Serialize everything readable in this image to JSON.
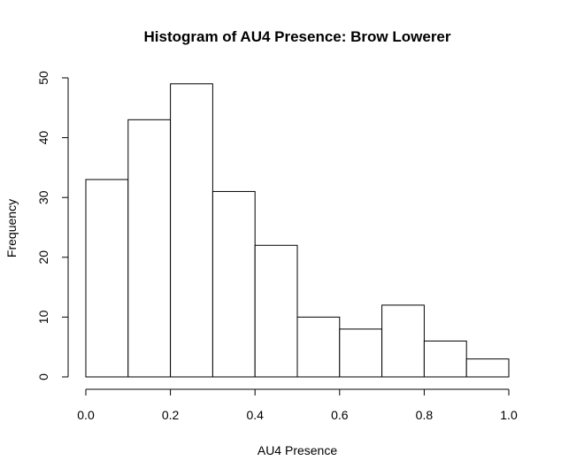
{
  "chart_data": {
    "type": "bar",
    "title": "Histogram of AU4 Presence: Brow Lowerer",
    "xlabel": "AU4 Presence",
    "ylabel": "Frequency",
    "bins": [
      {
        "start": 0.0,
        "end": 0.1,
        "count": 33
      },
      {
        "start": 0.1,
        "end": 0.2,
        "count": 43
      },
      {
        "start": 0.2,
        "end": 0.3,
        "count": 49
      },
      {
        "start": 0.3,
        "end": 0.4,
        "count": 31
      },
      {
        "start": 0.4,
        "end": 0.5,
        "count": 22
      },
      {
        "start": 0.5,
        "end": 0.6,
        "count": 10
      },
      {
        "start": 0.6,
        "end": 0.7,
        "count": 8
      },
      {
        "start": 0.7,
        "end": 0.8,
        "count": 12
      },
      {
        "start": 0.8,
        "end": 0.9,
        "count": 6
      },
      {
        "start": 0.9,
        "end": 1.0,
        "count": 3
      }
    ],
    "xlim": [
      0,
      1
    ],
    "ylim": [
      0,
      50
    ],
    "x_ticks": [
      0,
      0.2,
      0.4,
      0.6,
      0.8,
      1
    ],
    "x_tick_labels": [
      "0.0",
      "0.2",
      "0.4",
      "0.6",
      "0.8",
      "1.0"
    ],
    "y_ticks": [
      0,
      10,
      20,
      30,
      40,
      50
    ],
    "y_tick_labels": [
      "0",
      "10",
      "20",
      "30",
      "40",
      "50"
    ],
    "grid": false,
    "legend": "none",
    "bar_fill": "#ffffff",
    "bar_stroke": "#000000"
  }
}
